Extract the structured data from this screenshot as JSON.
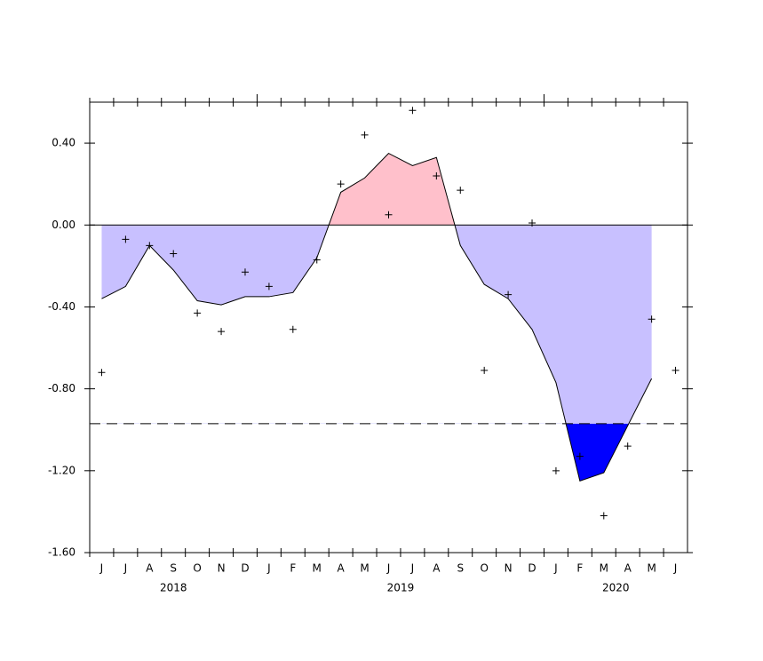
{
  "chart_data": {
    "type": "line",
    "categories": [
      "J",
      "J",
      "A",
      "S",
      "O",
      "N",
      "D",
      "J",
      "F",
      "M",
      "A",
      "M",
      "J",
      "J",
      "A",
      "S",
      "O",
      "N",
      "D",
      "J",
      "F",
      "M",
      "A",
      "M",
      "J"
    ],
    "series": [
      {
        "name": "smoothed",
        "color": "#000000",
        "values": [
          -0.36,
          -0.3,
          -0.1,
          -0.22,
          -0.37,
          -0.39,
          -0.35,
          -0.35,
          -0.33,
          -0.16,
          0.16,
          0.23,
          0.35,
          0.29,
          0.33,
          -0.1,
          -0.29,
          -0.36,
          -0.51,
          -0.77,
          -1.25,
          -1.21,
          -0.98,
          -0.75,
          null
        ]
      },
      {
        "name": "monthly",
        "color": "#000000",
        "values": [
          -0.72,
          -0.07,
          -0.1,
          -0.14,
          -0.43,
          -0.52,
          -0.23,
          -0.3,
          -0.51,
          -0.17,
          0.2,
          0.44,
          0.05,
          0.56,
          0.24,
          0.17,
          -0.71,
          -0.34,
          0.01,
          -1.2,
          -1.13,
          -1.42,
          -1.08,
          -0.46,
          -0.71
        ]
      }
    ],
    "years": [
      "2018",
      "2019",
      "2020"
    ],
    "threshold": -0.97,
    "positive_color": "#ffc0cb",
    "negative_color": "#c8c0ff",
    "below_threshold_color": "#0000ff",
    "ylim": [
      -1.6,
      0.6
    ],
    "yticks": [
      {
        "value": -1.6,
        "label": "-1.60"
      },
      {
        "value": -1.2,
        "label": "-1.20"
      },
      {
        "value": -0.8,
        "label": "-0.80"
      },
      {
        "value": -0.4,
        "label": "-0.40"
      },
      {
        "value": 0,
        "label": "0.00"
      },
      {
        "value": 0.4,
        "label": "0.40"
      }
    ]
  }
}
